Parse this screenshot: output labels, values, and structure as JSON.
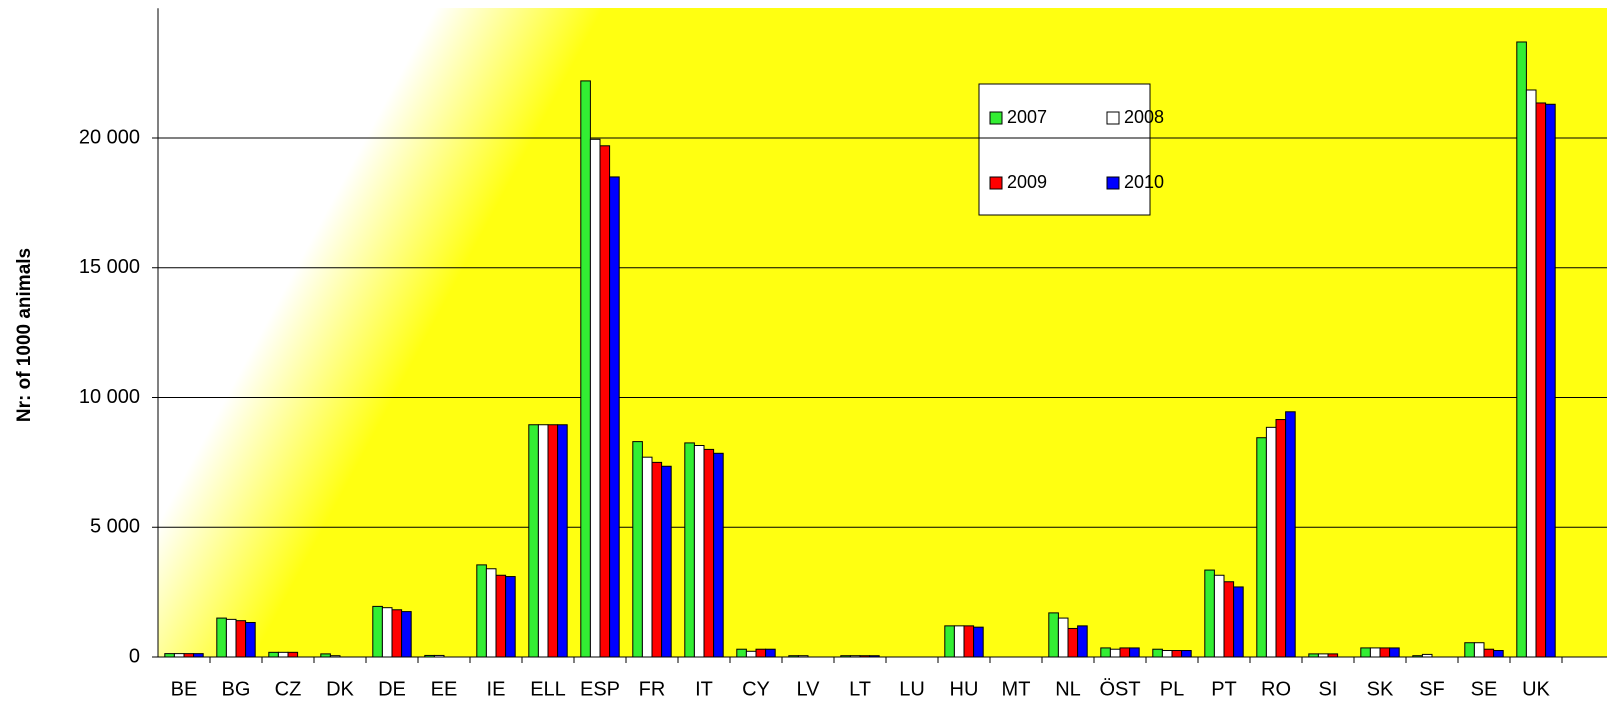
{
  "chart_data": {
    "type": "bar",
    "y_label": "Nr: of 1000 animals",
    "categories": [
      "BE",
      "BG",
      "CZ",
      "DK",
      "DE",
      "EE",
      "IE",
      "ELL",
      "ESP",
      "FR",
      "IT",
      "CY",
      "LV",
      "LT",
      "LU",
      "HU",
      "MT",
      "NL",
      "ÖST",
      "PL",
      "PT",
      "RO",
      "SI",
      "SK",
      "SF",
      "SE",
      "UK"
    ],
    "series": [
      {
        "name": "2007",
        "color": "#33ee33",
        "values": [
          130,
          1500,
          180,
          120,
          1950,
          60,
          3550,
          8950,
          22200,
          8300,
          8250,
          300,
          50,
          50,
          0,
          1200,
          0,
          1700,
          350,
          300,
          3350,
          8450,
          120,
          350,
          50,
          550,
          23700
        ]
      },
      {
        "name": "2008",
        "color": "#ffffff",
        "values": [
          130,
          1450,
          180,
          50,
          1900,
          60,
          3400,
          8950,
          19950,
          7700,
          8150,
          220,
          50,
          50,
          0,
          1200,
          0,
          1500,
          300,
          250,
          3150,
          8850,
          120,
          350,
          100,
          550,
          21850
        ]
      },
      {
        "name": "2009",
        "color": "#ff0000",
        "values": [
          130,
          1400,
          180,
          0,
          1820,
          0,
          3150,
          8950,
          19700,
          7500,
          8000,
          300,
          0,
          50,
          0,
          1200,
          0,
          1100,
          350,
          250,
          2900,
          9150,
          120,
          350,
          0,
          300,
          21350
        ]
      },
      {
        "name": "2010",
        "color": "#0000ff",
        "values": [
          130,
          1330,
          0,
          0,
          1750,
          0,
          3100,
          8950,
          18500,
          7350,
          7850,
          300,
          0,
          50,
          0,
          1150,
          0,
          1200,
          350,
          250,
          2700,
          9450,
          0,
          350,
          0,
          250,
          21300
        ]
      }
    ],
    "ylim": [
      0,
      25000
    ],
    "yticks": [
      0,
      {
        "value": 5000,
        "label": "5 000"
      },
      {
        "value": 10000,
        "label": "10 000"
      },
      {
        "value": 15000,
        "label": "15 000"
      },
      {
        "value": 20000,
        "label": "20 000"
      }
    ],
    "grid": true
  }
}
